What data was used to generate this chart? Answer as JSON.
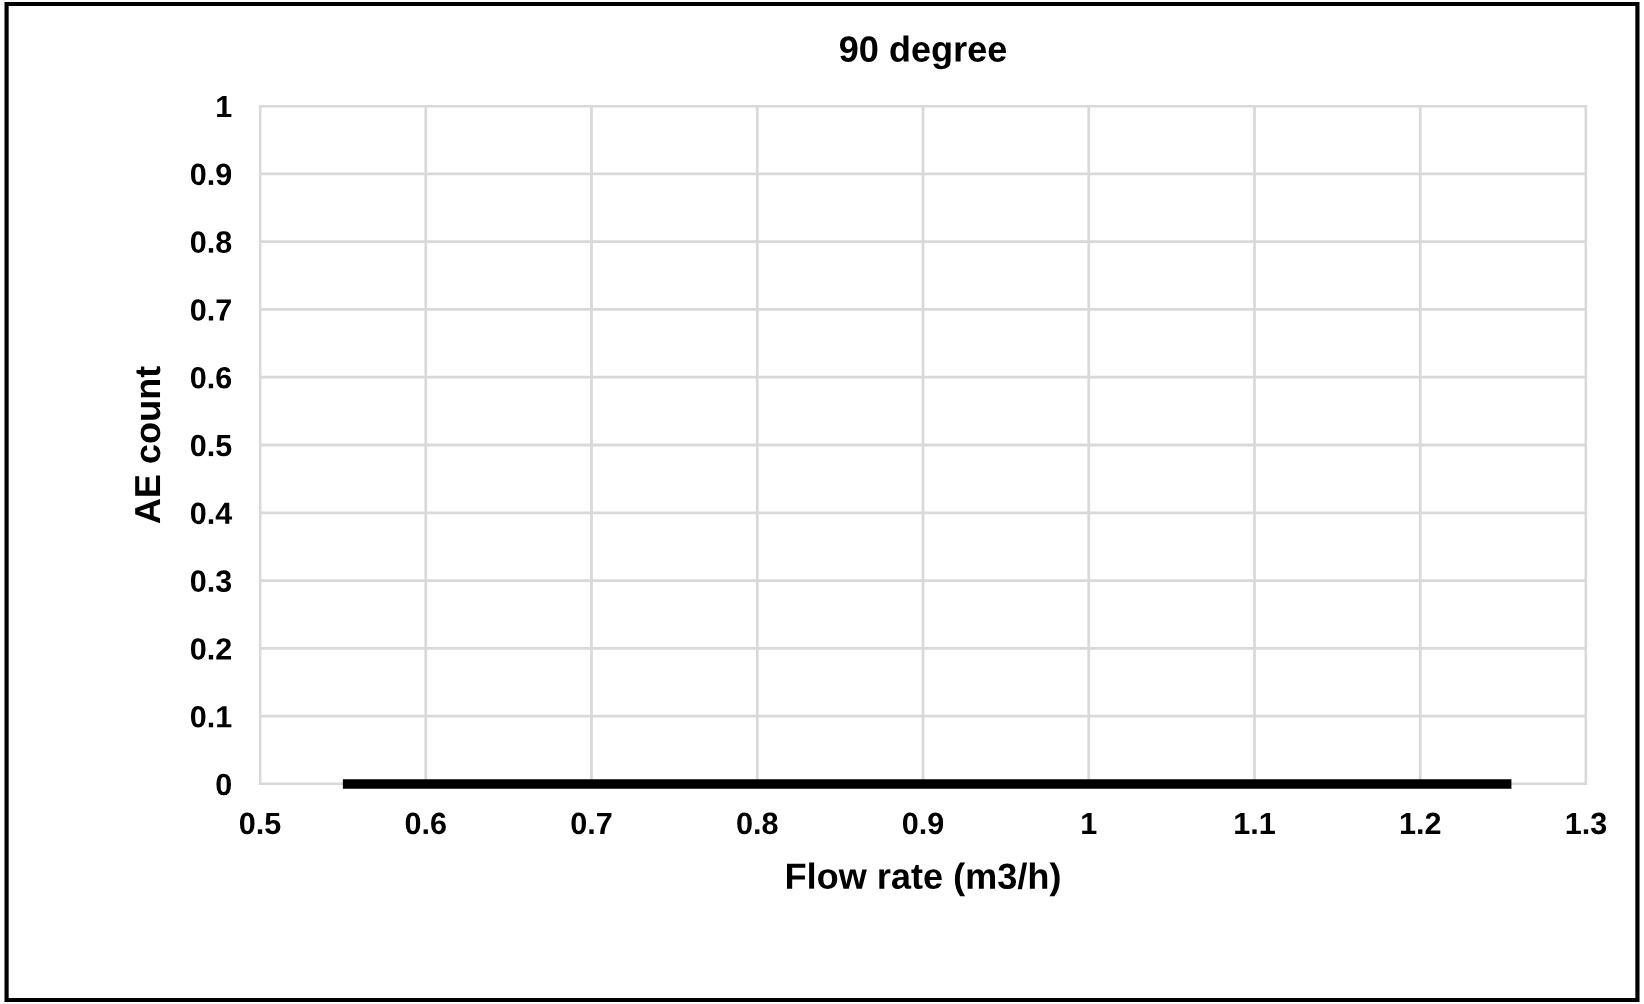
{
  "chart_data": {
    "type": "line",
    "title": "90 degree",
    "xlabel": "Flow rate (m3/h)",
    "ylabel": "AE count",
    "x": [
      0.55,
      1.255
    ],
    "series": [
      {
        "color": "#000000",
        "values": [
          0,
          0
        ]
      }
    ],
    "xlim": [
      0.5,
      1.3
    ],
    "xticks": [
      0.5,
      0.6,
      0.7,
      0.8,
      0.9,
      1,
      1.1,
      1.2,
      1.3
    ],
    "ylim": [
      0,
      1
    ],
    "yticks": [
      0,
      0.1,
      0.2,
      0.3,
      0.4,
      0.5,
      0.6,
      0.7,
      0.8,
      0.9,
      1
    ],
    "grid": true,
    "legend": false,
    "marker": "none",
    "line_style": "solid"
  }
}
